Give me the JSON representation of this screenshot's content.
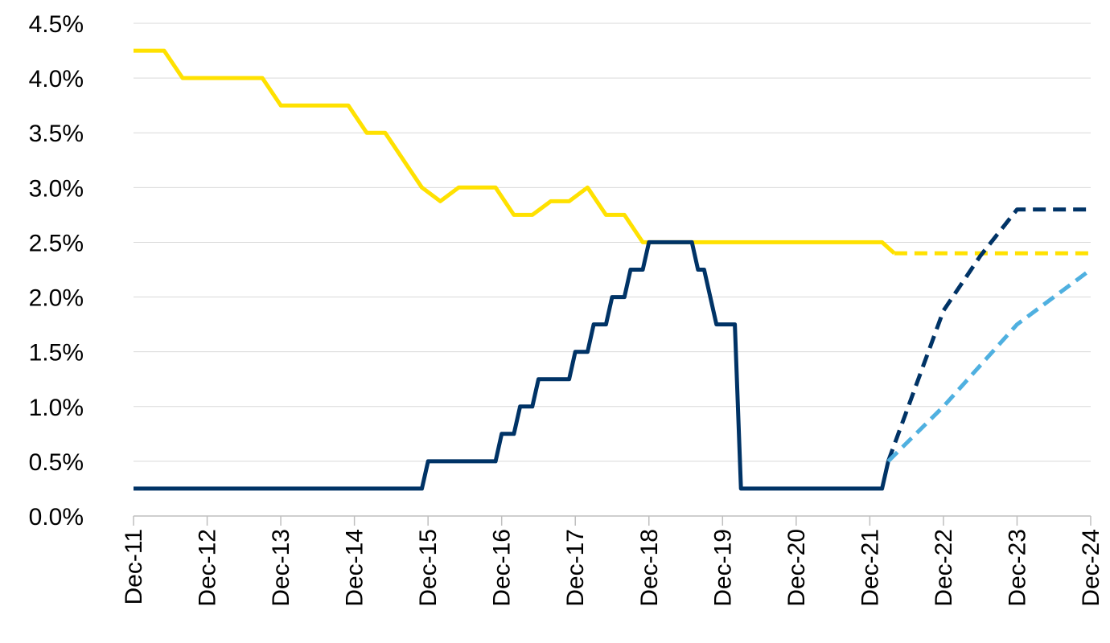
{
  "chart_data": {
    "type": "line",
    "title": "",
    "xlabel": "",
    "ylabel": "",
    "x_ticks": [
      "Dec-11",
      "Dec-12",
      "Dec-13",
      "Dec-14",
      "Dec-15",
      "Dec-16",
      "Dec-17",
      "Dec-18",
      "Dec-19",
      "Dec-20",
      "Dec-21",
      "Dec-22",
      "Dec-23",
      "Dec-24"
    ],
    "x_range": [
      "2011-12",
      "2024-12"
    ],
    "y_ticks": [
      "0.0%",
      "0.5%",
      "1.0%",
      "1.5%",
      "2.0%",
      "2.5%",
      "3.0%",
      "3.5%",
      "4.0%",
      "4.5%"
    ],
    "ylim": [
      0,
      4.5
    ],
    "grid": true,
    "legend": "none",
    "series": [
      {
        "color": "#FFE100",
        "style": "solid",
        "points": [
          [
            "2011-12",
            4.25
          ],
          [
            "2012-05",
            4.25
          ],
          [
            "2012-08",
            4.0
          ],
          [
            "2013-09",
            4.0
          ],
          [
            "2013-12",
            3.75
          ],
          [
            "2014-11",
            3.75
          ],
          [
            "2015-02",
            3.5
          ],
          [
            "2015-05",
            3.5
          ],
          [
            "2015-11",
            3.0
          ],
          [
            "2016-02",
            2.875
          ],
          [
            "2016-05",
            3.0
          ],
          [
            "2016-11",
            3.0
          ],
          [
            "2017-02",
            2.75
          ],
          [
            "2017-05",
            2.75
          ],
          [
            "2017-08",
            2.875
          ],
          [
            "2017-11",
            2.875
          ],
          [
            "2018-02",
            3.0
          ],
          [
            "2018-05",
            2.75
          ],
          [
            "2018-08",
            2.75
          ],
          [
            "2018-11",
            2.5
          ],
          [
            "2022-02",
            2.5
          ],
          [
            "2022-04",
            2.4
          ]
        ]
      },
      {
        "color": "#FFE100",
        "style": "dashed",
        "points": [
          [
            "2022-04",
            2.4
          ],
          [
            "2024-12",
            2.4
          ]
        ]
      },
      {
        "color": "#003366",
        "style": "solid",
        "points": [
          [
            "2011-12",
            0.25
          ],
          [
            "2015-11",
            0.25
          ],
          [
            "2015-12",
            0.5
          ],
          [
            "2016-11",
            0.5
          ],
          [
            "2016-12",
            0.75
          ],
          [
            "2017-02",
            0.75
          ],
          [
            "2017-03",
            1.0
          ],
          [
            "2017-05",
            1.0
          ],
          [
            "2017-06",
            1.25
          ],
          [
            "2017-11",
            1.25
          ],
          [
            "2017-12",
            1.5
          ],
          [
            "2018-02",
            1.5
          ],
          [
            "2018-03",
            1.75
          ],
          [
            "2018-05",
            1.75
          ],
          [
            "2018-06",
            2.0
          ],
          [
            "2018-08",
            2.0
          ],
          [
            "2018-09",
            2.25
          ],
          [
            "2018-11",
            2.25
          ],
          [
            "2018-12",
            2.5
          ],
          [
            "2019-07",
            2.5
          ],
          [
            "2019-08",
            2.25
          ],
          [
            "2019-09",
            2.25
          ],
          [
            "2019-11",
            1.75
          ],
          [
            "2020-02",
            1.75
          ],
          [
            "2020-03",
            0.25
          ],
          [
            "2022-02",
            0.25
          ],
          [
            "2022-03",
            0.5
          ]
        ]
      },
      {
        "color": "#003366",
        "style": "dashed",
        "points": [
          [
            "2022-03",
            0.5
          ],
          [
            "2022-12",
            1.875
          ],
          [
            "2023-06",
            2.375
          ],
          [
            "2023-12",
            2.8
          ],
          [
            "2024-12",
            2.8
          ]
        ]
      },
      {
        "color": "#4FB0E0",
        "style": "dashed",
        "points": [
          [
            "2022-03",
            0.5
          ],
          [
            "2022-12",
            1.0
          ],
          [
            "2023-12",
            1.75
          ],
          [
            "2024-12",
            2.25
          ]
        ]
      }
    ]
  }
}
